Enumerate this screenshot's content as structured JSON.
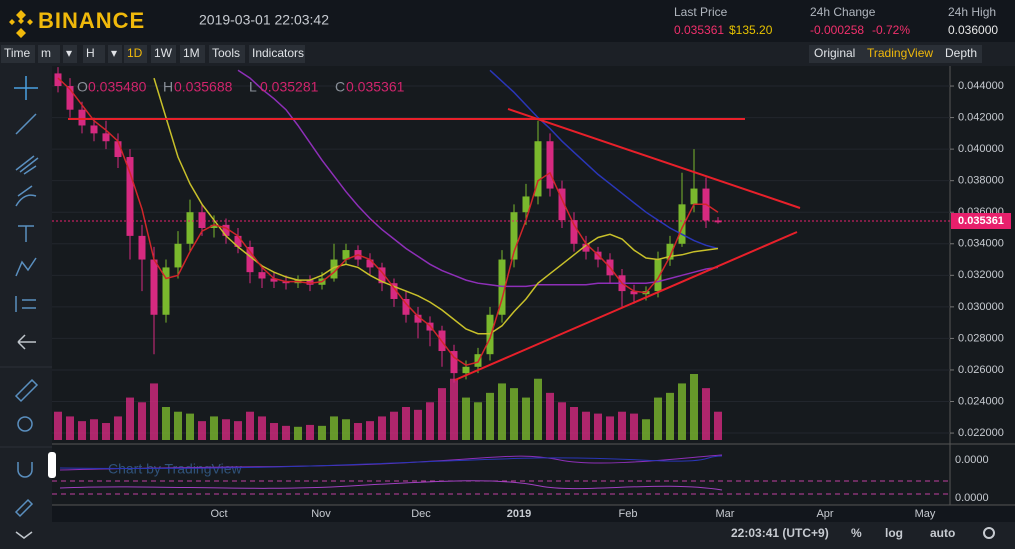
{
  "header": {
    "logo": "BINANCE",
    "datetime": "2019-03-01 22:03:42",
    "last_price_label": "Last Price",
    "last_price": "0.035361",
    "last_price_usd": "$135.20",
    "change_label": "24h Change",
    "change": "-0.000258",
    "change_pct": "-0.72%",
    "high_label": "24h High",
    "high": "0.036000"
  },
  "toolbar": {
    "left": [
      "Time",
      "m",
      "▾",
      "H",
      "▾",
      "1D",
      "1W",
      "1M",
      "Tools",
      "Indicators"
    ],
    "right": [
      "Original",
      "TradingView",
      "Depth"
    ]
  },
  "price_chart": {
    "legend": [
      {
        "key": "O",
        "value": "0.035480"
      },
      {
        "key": "H",
        "value": "0.035688"
      },
      {
        "key": "L",
        "value": "0.035281"
      },
      {
        "key": "C",
        "value": "0.035361"
      }
    ],
    "watermark": "Chart by TradingView",
    "ylim": [
      0.02156,
      0.04527
    ],
    "yticks": [
      {
        "value": 0.044,
        "label": "0.044000"
      },
      {
        "value": 0.042,
        "label": "0.042000"
      },
      {
        "value": 0.04,
        "label": "0.040000"
      },
      {
        "value": 0.038,
        "label": "0.038000"
      },
      {
        "value": 0.036,
        "label": "0.036000"
      },
      {
        "value": 0.034,
        "label": "0.034000"
      },
      {
        "value": 0.032,
        "label": "0.032000"
      },
      {
        "value": 0.03,
        "label": "0.030000"
      },
      {
        "value": 0.028,
        "label": "0.028000"
      },
      {
        "value": 0.026,
        "label": "0.026000"
      },
      {
        "value": 0.024,
        "label": "0.024000"
      },
      {
        "value": 0.022,
        "label": "0.022000"
      }
    ],
    "lower_panel_ticks": [
      "0.0000",
      "0.0000"
    ],
    "x_labels": [
      "Oct",
      "Nov",
      "Dec",
      "2019",
      "Feb",
      "Mar",
      "Apr",
      "May"
    ],
    "up_color": "#7ab82d",
    "down_color": "#d62a80",
    "open": [
      0.0448,
      0.044,
      0.0425,
      0.0415,
      0.041,
      0.0405,
      0.0395,
      0.0345,
      0.033,
      0.0295,
      0.0325,
      0.034,
      0.036,
      0.035,
      0.0352,
      0.0345,
      0.0338,
      0.0322,
      0.0318,
      0.0316,
      0.0315,
      0.0317,
      0.0314,
      0.0318,
      0.033,
      0.0336,
      0.033,
      0.0325,
      0.0315,
      0.0305,
      0.0295,
      0.029,
      0.0285,
      0.0272,
      0.0258,
      0.0262,
      0.027,
      0.0295,
      0.033,
      0.036,
      0.037,
      0.0405,
      0.0375,
      0.0355,
      0.034,
      0.0335,
      0.033,
      0.032,
      0.031,
      0.0308,
      0.031,
      0.033,
      0.034,
      0.0365,
      0.0375,
      0.03548
    ],
    "high": [
      0.0452,
      0.0445,
      0.043,
      0.042,
      0.0418,
      0.041,
      0.04,
      0.0352,
      0.0338,
      0.033,
      0.0348,
      0.0368,
      0.0365,
      0.0358,
      0.0356,
      0.035,
      0.0342,
      0.0326,
      0.0322,
      0.032,
      0.032,
      0.032,
      0.0322,
      0.034,
      0.034,
      0.0339,
      0.0334,
      0.0328,
      0.0318,
      0.031,
      0.03,
      0.0294,
      0.0288,
      0.0276,
      0.0266,
      0.0274,
      0.03,
      0.0336,
      0.0365,
      0.0378,
      0.0418,
      0.041,
      0.038,
      0.036,
      0.0345,
      0.0338,
      0.0334,
      0.0324,
      0.0314,
      0.0313,
      0.0335,
      0.0345,
      0.0385,
      0.04,
      0.0382,
      0.035688
    ],
    "low": [
      0.0436,
      0.042,
      0.041,
      0.0405,
      0.04,
      0.0388,
      0.033,
      0.031,
      0.027,
      0.029,
      0.0318,
      0.0335,
      0.0345,
      0.0344,
      0.034,
      0.0334,
      0.0315,
      0.0312,
      0.0312,
      0.0311,
      0.0312,
      0.031,
      0.0311,
      0.0316,
      0.0327,
      0.0326,
      0.032,
      0.031,
      0.03,
      0.029,
      0.028,
      0.0275,
      0.0262,
      0.0252,
      0.0254,
      0.0258,
      0.0266,
      0.029,
      0.0325,
      0.0352,
      0.0365,
      0.037,
      0.035,
      0.0335,
      0.033,
      0.0325,
      0.0315,
      0.03,
      0.0302,
      0.0304,
      0.0306,
      0.0326,
      0.0338,
      0.036,
      0.035,
      0.035281
    ],
    "close": [
      0.044,
      0.0425,
      0.0415,
      0.041,
      0.0405,
      0.0395,
      0.0345,
      0.033,
      0.0295,
      0.0325,
      0.034,
      0.036,
      0.035,
      0.0352,
      0.0345,
      0.0338,
      0.0322,
      0.0318,
      0.0316,
      0.0315,
      0.0317,
      0.0314,
      0.0318,
      0.033,
      0.0336,
      0.033,
      0.0325,
      0.0315,
      0.0305,
      0.0295,
      0.029,
      0.0285,
      0.0272,
      0.0258,
      0.0262,
      0.027,
      0.0295,
      0.033,
      0.036,
      0.037,
      0.0405,
      0.0375,
      0.0355,
      0.034,
      0.0335,
      0.033,
      0.032,
      0.031,
      0.0308,
      0.031,
      0.033,
      0.034,
      0.0365,
      0.0375,
      0.03548,
      0.035361
    ],
    "volume": [
      30,
      25,
      20,
      22,
      18,
      25,
      45,
      40,
      60,
      35,
      30,
      28,
      20,
      25,
      22,
      20,
      30,
      25,
      18,
      15,
      14,
      16,
      15,
      25,
      22,
      18,
      20,
      25,
      30,
      35,
      32,
      40,
      55,
      65,
      45,
      40,
      50,
      60,
      55,
      45,
      65,
      50,
      40,
      35,
      30,
      28,
      25,
      30,
      28,
      22,
      45,
      50,
      60,
      70,
      55,
      30
    ],
    "moving_averages": [
      {
        "color": "#8e2fb8",
        "values": [
          null,
          null,
          null,
          null,
          null,
          null,
          null,
          null,
          null,
          null,
          null,
          null,
          null,
          null,
          null,
          0.045,
          0.0445,
          0.0438,
          0.0432,
          0.0425,
          0.0415,
          0.0404,
          0.0393,
          0.0383,
          0.0373,
          0.0364,
          0.0356,
          0.0349,
          0.0343,
          0.0337,
          0.0332,
          0.0327,
          0.0323,
          0.032,
          0.0317,
          0.0315,
          0.0314,
          0.0313,
          0.0313,
          0.0313,
          0.0314,
          0.0314,
          0.0314,
          0.0314,
          0.0314,
          0.0315,
          0.0315,
          0.0315,
          0.0315,
          0.0315,
          0.0316,
          0.0318,
          0.032,
          0.0322,
          0.0324,
          0.0325
        ]
      },
      {
        "color": "#2a36b8",
        "values": [
          null,
          null,
          null,
          null,
          null,
          null,
          null,
          null,
          null,
          null,
          null,
          null,
          null,
          null,
          null,
          null,
          null,
          null,
          null,
          null,
          null,
          null,
          null,
          null,
          null,
          null,
          null,
          null,
          null,
          null,
          null,
          null,
          null,
          null,
          null,
          null,
          0.045,
          0.0443,
          0.0436,
          0.0428,
          0.042,
          0.0413,
          0.0405,
          0.0398,
          0.0391,
          0.0384,
          0.0378,
          0.0372,
          0.0366,
          0.036,
          0.0355,
          0.035,
          0.0346,
          0.0342,
          0.0339,
          0.0337
        ]
      },
      {
        "color": "#c8c02a",
        "values": [
          null,
          null,
          null,
          null,
          null,
          null,
          null,
          null,
          0.0445,
          0.042,
          0.0395,
          0.0378,
          0.0365,
          0.0355,
          0.0345,
          0.0338,
          0.0332,
          0.0326,
          0.0322,
          0.0319,
          0.0317,
          0.0317,
          0.032,
          0.0325,
          0.0327,
          0.0325,
          0.032,
          0.0316,
          0.0313,
          0.031,
          0.0307,
          0.0303,
          0.0298,
          0.0292,
          0.0286,
          0.0283,
          0.0283,
          0.0288,
          0.0297,
          0.0305,
          0.0315,
          0.0321,
          0.0327,
          0.0333,
          0.0339,
          0.0344,
          0.0346,
          0.0343,
          0.0336,
          0.0331,
          0.033,
          0.0332,
          0.0333,
          0.0335,
          0.0336,
          0.0337
        ]
      },
      {
        "color": "#d0262a",
        "values": [
          0.0445,
          0.0438,
          0.0428,
          0.0418,
          0.0412,
          0.0405,
          0.0385,
          0.0362,
          0.033,
          0.0318,
          0.032,
          0.0335,
          0.0348,
          0.0352,
          0.035,
          0.0345,
          0.0335,
          0.0325,
          0.0318,
          0.0316,
          0.0316,
          0.0315,
          0.0316,
          0.0322,
          0.033,
          0.0333,
          0.033,
          0.0322,
          0.0312,
          0.0302,
          0.0294,
          0.0288,
          0.0278,
          0.0268,
          0.0263,
          0.0265,
          0.028,
          0.0305,
          0.0335,
          0.0355,
          0.038,
          0.0385,
          0.0368,
          0.0352,
          0.034,
          0.0333,
          0.0325,
          0.0315,
          0.031,
          0.0309,
          0.0318,
          0.0332,
          0.035,
          0.0365,
          0.0365,
          0.036
        ]
      }
    ]
  },
  "footer": {
    "time": "22:03:41 (UTC+9)",
    "buttons": [
      "%",
      "log",
      "auto"
    ]
  }
}
